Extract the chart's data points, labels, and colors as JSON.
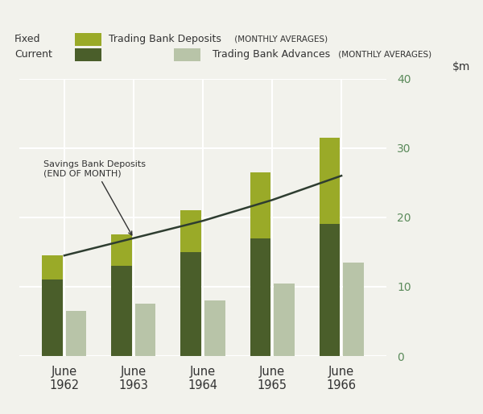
{
  "years": [
    "June\n1962",
    "June\n1963",
    "June\n1964",
    "June\n1965",
    "June\n1966"
  ],
  "x_positions": [
    0,
    1,
    2,
    3,
    4
  ],
  "current_deposits": [
    11.0,
    13.0,
    15.0,
    17.0,
    19.0
  ],
  "fixed_deposits": [
    3.5,
    4.5,
    6.0,
    9.5,
    12.5
  ],
  "advances": [
    6.5,
    7.5,
    8.0,
    10.5,
    13.5
  ],
  "savings_line": [
    14.5,
    17.0,
    19.5,
    22.5,
    26.0
  ],
  "color_current": "#4a5e2a",
  "color_fixed": "#9aaa28",
  "color_advances": "#b8c4a8",
  "color_line": "#2e3d30",
  "ylim_min": 0,
  "ylim_max": 40,
  "yticks": [
    0,
    10,
    20,
    30,
    40
  ],
  "bar_width": 0.3,
  "bg_color": "#f2f2ec",
  "grid_color": "#ffffff",
  "tick_color": "#5a8a5a",
  "label_fixed": "Fixed",
  "label_current": "Current",
  "label_deposits": "Trading Bank Deposits",
  "label_deposits_sub": "(MONTHLY AVERAGES)",
  "label_advances": "Trading Bank Advances",
  "label_advances_sub": "(MONTHLY AVERAGES)",
  "annotation_label_line1": "Savings Bank Deposits",
  "annotation_label_line2": "(END OF MONTH)"
}
